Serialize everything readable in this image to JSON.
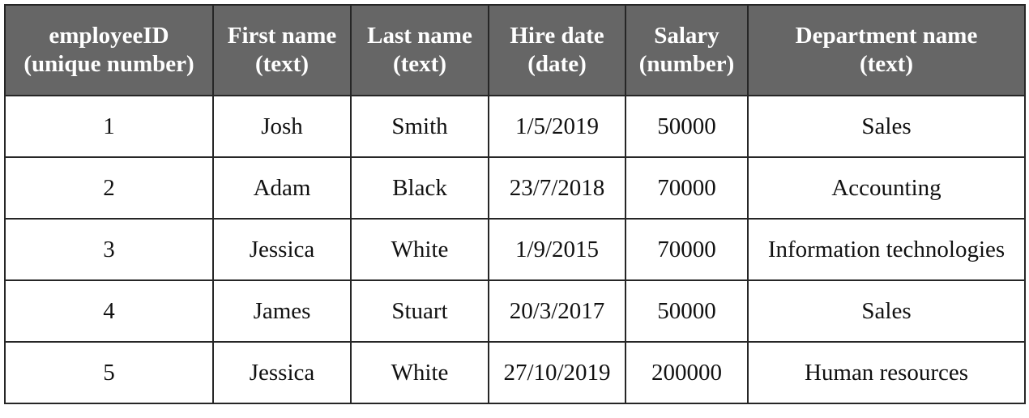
{
  "table": {
    "headers": [
      {
        "line1": "employeeID",
        "line2": "(unique number)"
      },
      {
        "line1": "First name",
        "line2": "(text)"
      },
      {
        "line1": "Last name",
        "line2": "(text)"
      },
      {
        "line1": "Hire date",
        "line2": "(date)"
      },
      {
        "line1": "Salary",
        "line2": "(number)"
      },
      {
        "line1": "Department name",
        "line2": "(text)"
      }
    ],
    "rows": [
      [
        "1",
        "Josh",
        "Smith",
        "1/5/2019",
        "50000",
        "Sales"
      ],
      [
        "2",
        "Adam",
        "Black",
        "23/7/2018",
        "70000",
        "Accounting"
      ],
      [
        "3",
        "Jessica",
        "White",
        "1/9/2015",
        "70000",
        "Information technologies"
      ],
      [
        "4",
        "James",
        "Stuart",
        "20/3/2017",
        "50000",
        "Sales"
      ],
      [
        "5",
        "Jessica",
        "White",
        "27/10/2019",
        "200000",
        "Human resources"
      ]
    ]
  },
  "colors": {
    "header_background": "#666666",
    "header_text": "#ffffff",
    "border": "#262626"
  }
}
